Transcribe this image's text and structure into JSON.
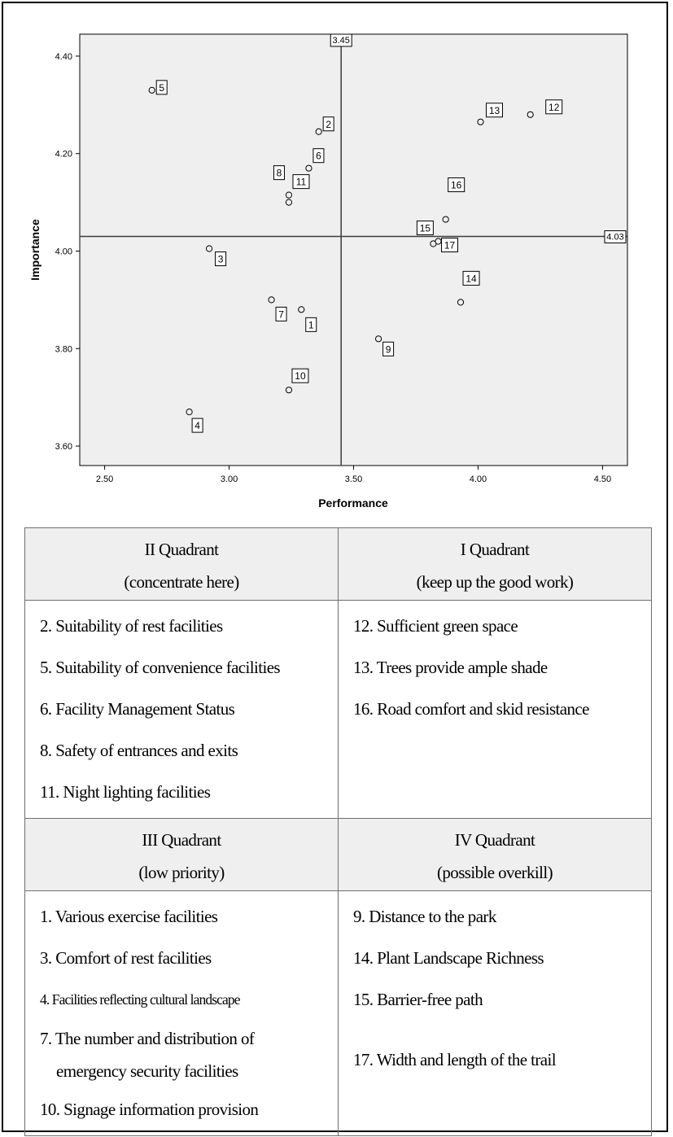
{
  "chart_data": {
    "type": "scatter",
    "xlabel": "Performance",
    "ylabel": "Importance",
    "xlim": [
      2.4,
      4.6
    ],
    "ylim": [
      3.56,
      4.445
    ],
    "x_ticks": [
      "2.50",
      "3.00",
      "3.50",
      "4.00",
      "4.50"
    ],
    "y_ticks": [
      "3.60",
      "3.80",
      "4.00",
      "4.20",
      "4.40"
    ],
    "ref_x": 3.45,
    "ref_y": 4.03,
    "ref_x_label": "3.45",
    "ref_y_label": "4.03",
    "grid": false,
    "points": [
      {
        "id": "1",
        "x": 3.29,
        "y": 3.88
      },
      {
        "id": "2",
        "x": 3.36,
        "y": 4.245
      },
      {
        "id": "3",
        "x": 2.92,
        "y": 4.005
      },
      {
        "id": "4",
        "x": 2.84,
        "y": 3.67
      },
      {
        "id": "5",
        "x": 2.69,
        "y": 4.33
      },
      {
        "id": "6",
        "x": 3.32,
        "y": 4.17
      },
      {
        "id": "7",
        "x": 3.17,
        "y": 3.9
      },
      {
        "id": "8",
        "x": 3.24,
        "y": 4.115
      },
      {
        "id": "9",
        "x": 3.6,
        "y": 3.82
      },
      {
        "id": "10",
        "x": 3.24,
        "y": 3.715
      },
      {
        "id": "11",
        "x": 3.24,
        "y": 4.1
      },
      {
        "id": "12",
        "x": 4.21,
        "y": 4.28
      },
      {
        "id": "13",
        "x": 4.01,
        "y": 4.265
      },
      {
        "id": "14",
        "x": 3.93,
        "y": 3.895
      },
      {
        "id": "15",
        "x": 3.82,
        "y": 4.015
      },
      {
        "id": "16",
        "x": 3.87,
        "y": 4.065
      },
      {
        "id": "17",
        "x": 3.84,
        "y": 4.02
      }
    ]
  },
  "table": {
    "q2": {
      "title": "II Quadrant",
      "subtitle": "(concentrate here)",
      "items": [
        "2. Suitability of rest facilities",
        "5. Suitability of convenience facilities",
        "6. Facility Management Status",
        "8. Safety of entrances and exits",
        "11. Night lighting facilities"
      ]
    },
    "q1": {
      "title": "I Quadrant",
      "subtitle": "(keep up the good work)",
      "items": [
        "12. Sufficient green space",
        "13. Trees provide ample shade",
        "16. Road comfort and skid resistance"
      ]
    },
    "q3": {
      "title": "III Quadrant",
      "subtitle": "(low priority)",
      "items": [
        "1. Various exercise facilities",
        "3. Comfort of rest facilities",
        "4. Facilities reflecting cultural landscape",
        "7. The number and distribution of",
        "emergency security facilities",
        "10. Signage information provision"
      ]
    },
    "q4": {
      "title": "IV Quadrant",
      "subtitle": "(possible overkill)",
      "items": [
        "9. Distance to the park",
        "14. Plant Landscape Richness",
        "15. Barrier-free path",
        "17. Width and length of the trail"
      ]
    }
  },
  "colors": {
    "plot_bg": "#efefef",
    "header_bg": "#efefef",
    "axis": "#000000",
    "reference_line": "#3c3c3c"
  }
}
